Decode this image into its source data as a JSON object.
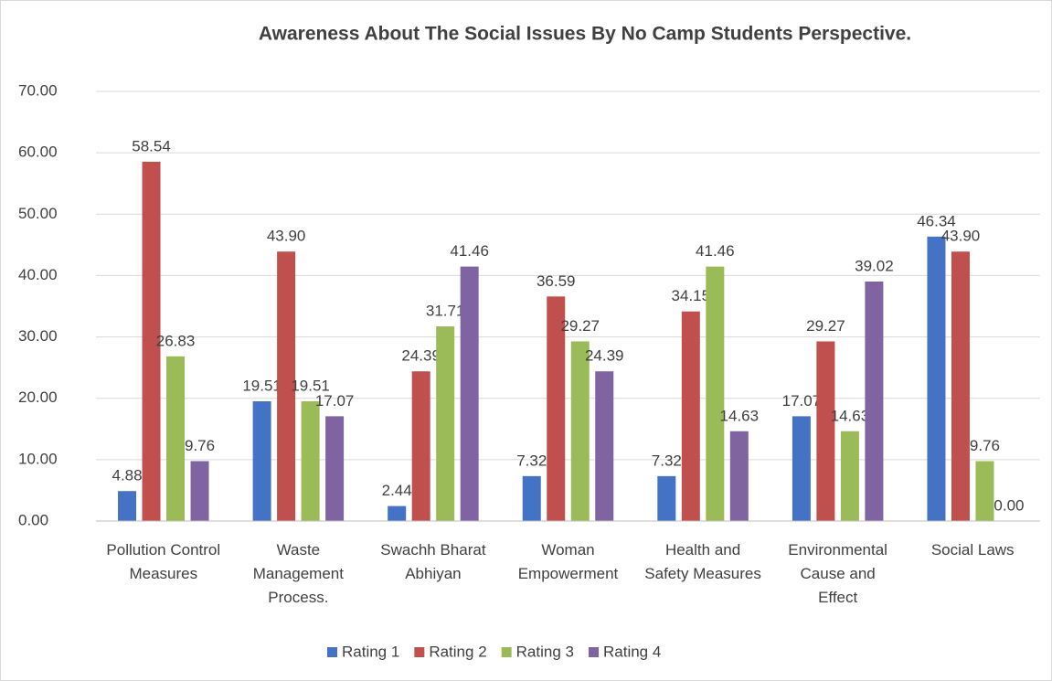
{
  "chart_data": {
    "type": "bar",
    "title": "Awareness About The Social Issues By No Camp Students Perspective.",
    "categories": [
      "Pollution Control Measures",
      "Waste Management Process.",
      "Swachh Bharat Abhiyan",
      "Woman Empowerment",
      "Health and Safety Measures",
      "Environmental Cause and Effect",
      "Social Laws"
    ],
    "series": [
      {
        "name": "Rating 1",
        "color": "#4472c4",
        "values": [
          4.88,
          19.51,
          2.44,
          7.32,
          7.32,
          17.07,
          46.34
        ],
        "value_labels": [
          "4.88",
          "19.51",
          "2.44",
          "7.32",
          "7.32",
          "17.07",
          "46.34"
        ]
      },
      {
        "name": "Rating 2",
        "color": "#c0504d",
        "values": [
          58.54,
          43.9,
          24.39,
          36.59,
          34.15,
          29.27,
          43.9
        ],
        "value_labels": [
          "58.54",
          "43.90",
          "24.39",
          "36.59",
          "34.15",
          "29.27",
          "43.90"
        ]
      },
      {
        "name": "Rating 3",
        "color": "#9bbb59",
        "values": [
          26.83,
          19.51,
          31.71,
          29.27,
          41.46,
          14.63,
          9.76
        ],
        "value_labels": [
          "26.83",
          "19.51",
          "31.71",
          "29.27",
          "41.46",
          "14.63",
          "9.76"
        ]
      },
      {
        "name": "Rating 4",
        "color": "#8064a2",
        "values": [
          9.76,
          17.07,
          41.46,
          24.39,
          14.63,
          39.02,
          0
        ],
        "value_labels": [
          "9.76",
          "17.07",
          "41.46",
          "24.39",
          "14.63",
          "39.02",
          "0.00"
        ]
      }
    ],
    "ylim": [
      0,
      70
    ],
    "yticks": [
      {
        "value": 0,
        "label": "0.00"
      },
      {
        "value": 10,
        "label": "10.00"
      },
      {
        "value": 20,
        "label": "20.00"
      },
      {
        "value": 30,
        "label": "30.00"
      },
      {
        "value": 40,
        "label": "40.00"
      },
      {
        "value": 50,
        "label": "50.00"
      },
      {
        "value": 60,
        "label": "60.00"
      },
      {
        "value": 70,
        "label": "70.00"
      }
    ],
    "grid": true,
    "legend": "bottom"
  }
}
